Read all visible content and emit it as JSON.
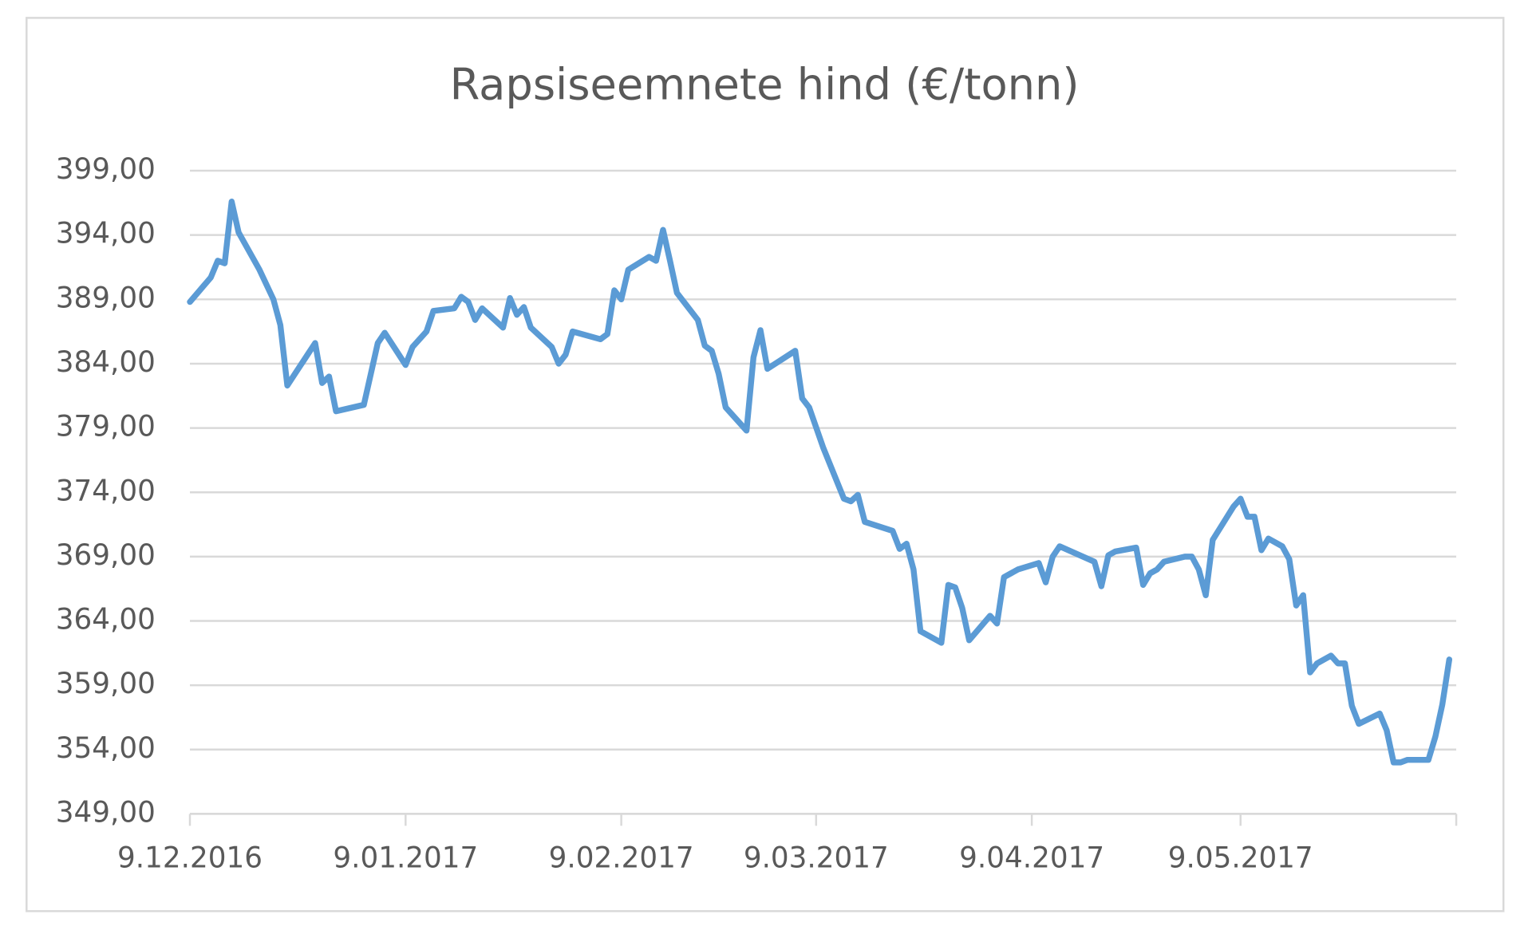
{
  "chart_data": {
    "type": "line",
    "title": "Rapsiseemnete hind (€/tonn)",
    "x": [
      "2016-12-09",
      "2016-12-12",
      "2016-12-13",
      "2016-12-14",
      "2016-12-15",
      "2016-12-16",
      "2016-12-19",
      "2016-12-21",
      "2016-12-22",
      "2016-12-23",
      "2016-12-27",
      "2016-12-28",
      "2016-12-29",
      "2016-12-30",
      "2017-01-03",
      "2017-01-05",
      "2017-01-06",
      "2017-01-09",
      "2017-01-10",
      "2017-01-12",
      "2017-01-13",
      "2017-01-16",
      "2017-01-17",
      "2017-01-18",
      "2017-01-19",
      "2017-01-20",
      "2017-01-23",
      "2017-01-24",
      "2017-01-25",
      "2017-01-26",
      "2017-01-27",
      "2017-01-30",
      "2017-01-31",
      "2017-02-01",
      "2017-02-02",
      "2017-02-06",
      "2017-02-07",
      "2017-02-08",
      "2017-02-09",
      "2017-02-10",
      "2017-02-13",
      "2017-02-14",
      "2017-02-15",
      "2017-02-16",
      "2017-02-17",
      "2017-02-20",
      "2017-02-21",
      "2017-02-22",
      "2017-02-23",
      "2017-02-24",
      "2017-02-27",
      "2017-02-28",
      "2017-03-01",
      "2017-03-02",
      "2017-03-06",
      "2017-03-07",
      "2017-03-08",
      "2017-03-10",
      "2017-03-13",
      "2017-03-14",
      "2017-03-15",
      "2017-03-16",
      "2017-03-20",
      "2017-03-21",
      "2017-03-22",
      "2017-03-23",
      "2017-03-24",
      "2017-03-27",
      "2017-03-28",
      "2017-03-29",
      "2017-03-30",
      "2017-03-31",
      "2017-04-03",
      "2017-04-04",
      "2017-04-05",
      "2017-04-06",
      "2017-04-07",
      "2017-04-10",
      "2017-04-11",
      "2017-04-12",
      "2017-04-13",
      "2017-04-18",
      "2017-04-19",
      "2017-04-20",
      "2017-04-21",
      "2017-04-24",
      "2017-04-25",
      "2017-04-26",
      "2017-04-27",
      "2017-04-28",
      "2017-05-01",
      "2017-05-02",
      "2017-05-03",
      "2017-05-04",
      "2017-05-05",
      "2017-05-08",
      "2017-05-09",
      "2017-05-10",
      "2017-05-11",
      "2017-05-12",
      "2017-05-13",
      "2017-05-15",
      "2017-05-16",
      "2017-05-17",
      "2017-05-18",
      "2017-05-19",
      "2017-05-20",
      "2017-05-22",
      "2017-05-23",
      "2017-05-24",
      "2017-05-25",
      "2017-05-26",
      "2017-05-29",
      "2017-05-30",
      "2017-05-31",
      "2017-06-01",
      "2017-06-02",
      "2017-06-05",
      "2017-06-06",
      "2017-06-07",
      "2017-06-08"
    ],
    "series": [
      {
        "color": "#5b9bd5",
        "values": [
          388.8,
          390.7,
          392.0,
          391.8,
          396.6,
          394.2,
          391.3,
          389.0,
          387.0,
          382.3,
          385.6,
          382.5,
          383.0,
          380.3,
          380.8,
          385.6,
          386.4,
          383.9,
          385.3,
          386.5,
          388.1,
          388.3,
          389.2,
          388.8,
          387.4,
          388.3,
          386.8,
          389.1,
          387.8,
          388.4,
          386.8,
          385.3,
          384.0,
          384.7,
          386.5,
          385.9,
          386.3,
          389.7,
          389.0,
          391.3,
          392.3,
          392.0,
          394.4,
          392.0,
          389.5,
          387.4,
          385.4,
          385.0,
          383.2,
          380.6,
          378.8,
          384.5,
          386.6,
          383.6,
          385.0,
          381.3,
          380.6,
          377.5,
          373.5,
          373.3,
          373.8,
          371.7,
          371.0,
          369.6,
          370.0,
          368.0,
          363.2,
          362.3,
          366.8,
          366.6,
          365.0,
          362.5,
          364.4,
          363.8,
          367.4,
          367.7,
          368.0,
          368.5,
          367.0,
          369.0,
          369.8,
          368.6,
          366.7,
          369.1,
          369.4,
          369.7,
          366.8,
          367.7,
          368.0,
          368.6,
          369.0,
          369.0,
          368.0,
          366.0,
          370.3,
          372.9,
          373.5,
          372.1,
          372.1,
          369.5,
          370.4,
          369.8,
          368.8,
          365.2,
          366.0,
          360.0,
          360.7,
          361.3,
          360.7,
          360.7,
          357.4,
          356.0,
          356.8,
          355.5,
          353.0,
          353.0,
          353.2,
          353.2,
          355.0,
          357.5,
          361.0
        ]
      }
    ],
    "xlim": [
      "2016-12-09",
      "2017-06-09"
    ],
    "xticks": [
      {
        "value": "2016-12-09",
        "label": "9.12.2016"
      },
      {
        "value": "2017-01-09",
        "label": "9.01.2017"
      },
      {
        "value": "2017-02-09",
        "label": "9.02.2017"
      },
      {
        "value": "2017-03-09",
        "label": "9.03.2017"
      },
      {
        "value": "2017-04-09",
        "label": "9.04.2017"
      },
      {
        "value": "2017-05-09",
        "label": "9.05.2017"
      }
    ],
    "ylim": [
      349,
      399
    ],
    "yticks": [
      {
        "value": 349,
        "label": "349,00"
      },
      {
        "value": 354,
        "label": "354,00"
      },
      {
        "value": 359,
        "label": "359,00"
      },
      {
        "value": 364,
        "label": "364,00"
      },
      {
        "value": 369,
        "label": "369,00"
      },
      {
        "value": 374,
        "label": "374,00"
      },
      {
        "value": 379,
        "label": "379,00"
      },
      {
        "value": 384,
        "label": "384,00"
      },
      {
        "value": 389,
        "label": "389,00"
      },
      {
        "value": 394,
        "label": "394,00"
      },
      {
        "value": 399,
        "label": "399,00"
      }
    ],
    "grid": true
  }
}
